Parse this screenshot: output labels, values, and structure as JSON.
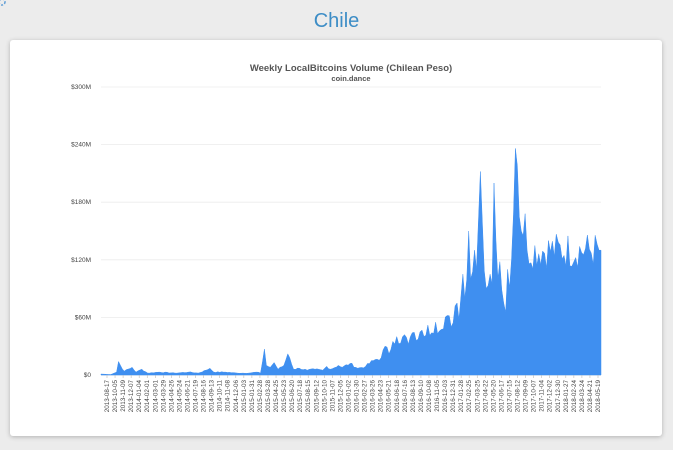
{
  "page": {
    "title": "Chile"
  },
  "chart_data": {
    "type": "area",
    "title": "Weekly LocalBitcoins Volume (Chilean Peso)",
    "subtitle": "coin.dance",
    "xlabel": "",
    "ylabel": "",
    "ylim": [
      0,
      300000000
    ],
    "yticks": [
      {
        "value": 0,
        "label": "$0"
      },
      {
        "value": 60000000,
        "label": "$60M"
      },
      {
        "value": 120000000,
        "label": "$120M"
      },
      {
        "value": 180000000,
        "label": "$180M"
      },
      {
        "value": 240000000,
        "label": "$240M"
      },
      {
        "value": 300000000,
        "label": "$300M"
      }
    ],
    "grid": true,
    "color": "#3f8ff0",
    "x_ticks": [
      "2013-08-17",
      "2013-10-05",
      "2013-11-09",
      "2013-12-07",
      "2014-01-04",
      "2014-02-01",
      "2014-03-01",
      "2014-03-29",
      "2014-04-26",
      "2014-05-24",
      "2014-06-21",
      "2014-07-19",
      "2014-08-16",
      "2014-09-13",
      "2014-10-11",
      "2014-11-08",
      "2014-12-06",
      "2015-01-03",
      "2015-01-31",
      "2015-02-28",
      "2015-03-28",
      "2015-04-25",
      "2015-05-23",
      "2015-06-20",
      "2015-07-18",
      "2015-08-15",
      "2015-09-12",
      "2015-10-10",
      "2015-11-07",
      "2015-12-05",
      "2016-01-02",
      "2016-01-30",
      "2016-02-27",
      "2016-03-26",
      "2016-04-23",
      "2016-05-21",
      "2016-06-18",
      "2016-07-16",
      "2016-08-13",
      "2016-09-10",
      "2016-10-08",
      "2016-11-05",
      "2016-12-03",
      "2016-12-31",
      "2017-01-28",
      "2017-02-25",
      "2017-03-25",
      "2017-04-22",
      "2017-05-20",
      "2017-06-17",
      "2017-07-15",
      "2017-08-12",
      "2017-09-09",
      "2017-10-07",
      "2017-11-04",
      "2017-12-02",
      "2017-12-30",
      "2018-01-27",
      "2018-02-24",
      "2018-03-24",
      "2018-04-21",
      "2018-05-19"
    ],
    "weeks": 258,
    "anchors": [
      [
        0,
        1000000
      ],
      [
        5,
        500000
      ],
      [
        8,
        3000000
      ],
      [
        9,
        14000000
      ],
      [
        10,
        10000000
      ],
      [
        12,
        4000000
      ],
      [
        16,
        8000000
      ],
      [
        18,
        3000000
      ],
      [
        21,
        6000000
      ],
      [
        24,
        2000000
      ],
      [
        30,
        3000000
      ],
      [
        38,
        2000000
      ],
      [
        45,
        3000000
      ],
      [
        50,
        2000000
      ],
      [
        54,
        5000000
      ],
      [
        56,
        7000000
      ],
      [
        58,
        3000000
      ],
      [
        64,
        3000000
      ],
      [
        70,
        2000000
      ],
      [
        76,
        2000000
      ],
      [
        80,
        3000000
      ],
      [
        82,
        2000000
      ],
      [
        84,
        27000000
      ],
      [
        85,
        10000000
      ],
      [
        87,
        8000000
      ],
      [
        89,
        13000000
      ],
      [
        91,
        6000000
      ],
      [
        94,
        10000000
      ],
      [
        96,
        22000000
      ],
      [
        97,
        18000000
      ],
      [
        99,
        6000000
      ],
      [
        102,
        7000000
      ],
      [
        106,
        5000000
      ],
      [
        110,
        6000000
      ],
      [
        114,
        5000000
      ],
      [
        116,
        9000000
      ],
      [
        118,
        6000000
      ],
      [
        122,
        10000000
      ],
      [
        124,
        8000000
      ],
      [
        128,
        12000000
      ],
      [
        132,
        7000000
      ],
      [
        136,
        9000000
      ],
      [
        140,
        15000000
      ],
      [
        144,
        18000000
      ],
      [
        146,
        30000000
      ],
      [
        148,
        22000000
      ],
      [
        150,
        35000000
      ],
      [
        152,
        40000000
      ],
      [
        154,
        33000000
      ],
      [
        156,
        42000000
      ],
      [
        158,
        32000000
      ],
      [
        160,
        44000000
      ],
      [
        162,
        36000000
      ],
      [
        164,
        45000000
      ],
      [
        166,
        40000000
      ],
      [
        168,
        52000000
      ],
      [
        170,
        44000000
      ],
      [
        172,
        55000000
      ],
      [
        174,
        46000000
      ],
      [
        176,
        48000000
      ],
      [
        178,
        62000000
      ],
      [
        180,
        50000000
      ],
      [
        182,
        72000000
      ],
      [
        183,
        75000000
      ],
      [
        184,
        58000000
      ],
      [
        186,
        105000000
      ],
      [
        187,
        80000000
      ],
      [
        189,
        150000000
      ],
      [
        190,
        100000000
      ],
      [
        192,
        130000000
      ],
      [
        193,
        110000000
      ],
      [
        195,
        212000000
      ],
      [
        196,
        160000000
      ],
      [
        198,
        90000000
      ],
      [
        200,
        105000000
      ],
      [
        201,
        95000000
      ],
      [
        202,
        200000000
      ],
      [
        203,
        140000000
      ],
      [
        204,
        100000000
      ],
      [
        205,
        118000000
      ],
      [
        207,
        75000000
      ],
      [
        208,
        65000000
      ],
      [
        209,
        110000000
      ],
      [
        210,
        90000000
      ],
      [
        211,
        120000000
      ],
      [
        213,
        236000000
      ],
      [
        215,
        165000000
      ],
      [
        216,
        150000000
      ],
      [
        217,
        145000000
      ],
      [
        218,
        168000000
      ],
      [
        219,
        130000000
      ]
    ]
  }
}
